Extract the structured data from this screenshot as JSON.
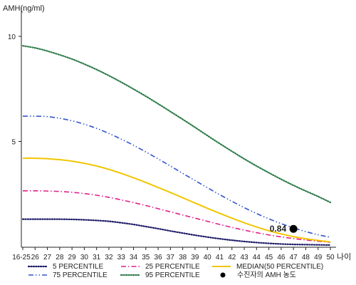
{
  "chart_data": {
    "type": "line",
    "ylabel": "AMH(ng/ml)",
    "xlabel": "나이",
    "y_ticks": [
      "10",
      "5"
    ],
    "y_tick_values": [
      10,
      5
    ],
    "ylim": [
      0,
      11
    ],
    "categories": [
      "16-25",
      "26",
      "27",
      "28",
      "29",
      "30",
      "31",
      "32",
      "33",
      "34",
      "35",
      "36",
      "37",
      "38",
      "39",
      "40",
      "41",
      "42",
      "43",
      "44",
      "45",
      "46",
      "47",
      "48",
      "49",
      "50"
    ],
    "series": [
      {
        "name": "5 PERCENTILE",
        "color": "#1a1a66",
        "dash": "dotted",
        "values": [
          1.3,
          1.3,
          1.3,
          1.3,
          1.29,
          1.27,
          1.24,
          1.2,
          1.13,
          1.05,
          0.95,
          0.85,
          0.74,
          0.64,
          0.54,
          0.45,
          0.37,
          0.3,
          0.24,
          0.19,
          0.15,
          0.12,
          0.1,
          0.09,
          0.08,
          0.07
        ]
      },
      {
        "name": "25 PERCENTILE",
        "color": "#e0218a",
        "dash": "dashdot",
        "values": [
          2.65,
          2.65,
          2.64,
          2.62,
          2.58,
          2.52,
          2.44,
          2.34,
          2.22,
          2.09,
          1.95,
          1.8,
          1.65,
          1.5,
          1.35,
          1.2,
          1.05,
          0.91,
          0.78,
          0.66,
          0.55,
          0.46,
          0.38,
          0.31,
          0.25,
          0.2
        ]
      },
      {
        "name": "MEDIAN(50 PERCENTILE)",
        "color": "#f2c500",
        "dash": "solid",
        "values": [
          4.2,
          4.2,
          4.18,
          4.13,
          4.06,
          3.96,
          3.83,
          3.67,
          3.48,
          3.27,
          3.05,
          2.81,
          2.57,
          2.32,
          2.07,
          1.82,
          1.58,
          1.35,
          1.13,
          0.93,
          0.75,
          0.6,
          0.47,
          0.37,
          0.29,
          0.22
        ]
      },
      {
        "name": "75 PERCENTILE",
        "color": "#3355cc",
        "dash": "dashdotdot",
        "values": [
          6.2,
          6.2,
          6.18,
          6.1,
          5.98,
          5.82,
          5.62,
          5.38,
          5.11,
          4.82,
          4.5,
          4.17,
          3.83,
          3.48,
          3.14,
          2.8,
          2.47,
          2.15,
          1.85,
          1.57,
          1.32,
          1.09,
          0.89,
          0.71,
          0.56,
          0.44
        ]
      },
      {
        "name": "95 PERCENTILE",
        "color": "#2e7d4a",
        "dash": "dotted",
        "values": [
          9.55,
          9.45,
          9.3,
          9.12,
          8.92,
          8.68,
          8.42,
          8.13,
          7.82,
          7.49,
          7.15,
          6.79,
          6.42,
          6.05,
          5.67,
          5.28,
          4.9,
          4.53,
          4.17,
          3.83,
          3.51,
          3.2,
          2.91,
          2.64,
          2.38,
          2.1
        ]
      }
    ],
    "marker": {
      "name": "수진자의 AMH 농도",
      "category": "47",
      "value": 0.84,
      "label": "0.84",
      "color": "#000000"
    },
    "legend_position": "bottom",
    "grid": false
  }
}
